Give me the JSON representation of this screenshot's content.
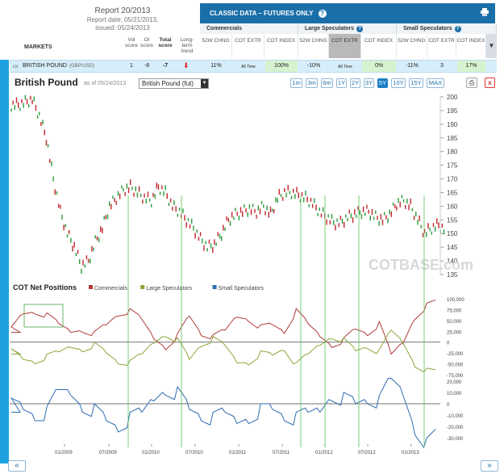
{
  "report": {
    "title": "Report 20/2013",
    "date": "Report date: 05/21/2013,",
    "issued": "issued: 05/24/2013"
  },
  "columns": {
    "markets": "MARKETS",
    "vol_score": "Vol score",
    "oi_score": "OI score",
    "total_score": "Total score",
    "long_term_trend": "Long-term trend"
  },
  "classic": {
    "title": "CLASSIC DATA – FUTURES ONLY",
    "help": "?",
    "groups": [
      {
        "name": "Commercials",
        "help": ""
      },
      {
        "name": "Large Speculators",
        "help": "?"
      },
      {
        "name": "Small Speculators",
        "help": "?"
      }
    ],
    "subcols": [
      "52W CHNG",
      "COT EXTR",
      "COT INDEX"
    ]
  },
  "row": {
    "market": "BRITISH POUND",
    "market_sub": "(GBP/USD)",
    "vol_score": "1",
    "oi_score": "-8",
    "total_score": "-7",
    "comm": {
      "chng": "11%",
      "extr": "All Time",
      "index": "100%"
    },
    "large": {
      "chng": "-10%",
      "extr": "All Time",
      "index": "0%"
    },
    "small": {
      "chng": "-11%",
      "extr": "3",
      "index": "17%"
    }
  },
  "chart": {
    "title": "British Pound",
    "asof": "as of 05/24/2013",
    "contract": "British Pound (fut)",
    "ranges": [
      "1m",
      "3m",
      "6m",
      "1Y",
      "2Y",
      "3Y",
      "5Y",
      "10Y",
      "15Y",
      "MAX"
    ],
    "active_range": "5Y",
    "watermark": "COTBASE.com",
    "cot_title": "COT Net Positions",
    "legend": [
      {
        "name": "Commercials",
        "color": "#b23b3b"
      },
      {
        "name": "Large Speculators",
        "color": "#8aa83a"
      },
      {
        "name": "Small Speculators",
        "color": "#2f6db3"
      }
    ]
  },
  "chart_data": [
    {
      "type": "line",
      "title": "British Pound",
      "y_ticks": [
        "200",
        "195",
        "190",
        "185",
        "180",
        "175",
        "170",
        "165",
        "160",
        "155",
        "150",
        "145",
        "140",
        "135"
      ],
      "ylim": [
        135,
        200
      ],
      "x_ticks": [
        "01/2009",
        "07/2009",
        "01/2010",
        "07/2010",
        "01/2011",
        "07/2011",
        "01/2012",
        "07/2012",
        "01/2013"
      ],
      "series": [
        {
          "name": "",
          "values": [
            197,
            198,
            199,
            193,
            185,
            170,
            158,
            150,
            145,
            138,
            140,
            147,
            152,
            160,
            163,
            166,
            167,
            165,
            163,
            162,
            167,
            165,
            160,
            158,
            155,
            152,
            148,
            145,
            146,
            150,
            155,
            157,
            158,
            159,
            158,
            160,
            157,
            163,
            165,
            165,
            164,
            163,
            161,
            158,
            156,
            154,
            154,
            156,
            157,
            158,
            158,
            156,
            155,
            157,
            161,
            162,
            160,
            155,
            150,
            152,
            153,
            151
          ]
        }
      ]
    },
    {
      "type": "line",
      "title": "COT Net Positions",
      "y_ticks_upper": [
        "100,000",
        "75,000",
        "50,000",
        "25,000",
        "0",
        "-25,000",
        "-50,000",
        "-75,000"
      ],
      "y_ticks_lower": [
        "20,000",
        "10,000",
        "0",
        "-10,000",
        "-20,000",
        "-30,000"
      ],
      "series": [
        {
          "name": "Commercials",
          "values": [
            30000,
            65000,
            70000,
            60000,
            40000,
            25000,
            30000,
            20000,
            40000,
            65000,
            70000,
            50000,
            10000,
            -10000,
            15000,
            60000,
            20000,
            10000,
            25000,
            60000,
            55000,
            35000,
            40000,
            25000,
            70000,
            40000,
            15000,
            -5000,
            5000,
            30000,
            20000,
            40000,
            -30000,
            0,
            60000,
            85000,
            95000
          ]
        },
        {
          "name": "Large Speculators",
          "values": [
            -20000,
            -40000,
            -45000,
            -35000,
            -25000,
            -10000,
            -15000,
            -5000,
            -25000,
            -45000,
            -50000,
            -30000,
            0,
            20000,
            5000,
            -40000,
            -5000,
            5000,
            -10000,
            -45000,
            -45000,
            -25000,
            -30000,
            -15000,
            -55000,
            -30000,
            -5000,
            15000,
            5000,
            -20000,
            -10000,
            -25000,
            25000,
            0,
            -50000,
            -65000,
            -70000
          ]
        },
        {
          "name": "Small Speculators",
          "values": [
            0,
            -5000,
            -10000,
            -10000,
            10000,
            10000,
            0,
            -5000,
            -15000,
            -20000,
            -15000,
            -10000,
            5000,
            15000,
            10000,
            -5000,
            -10000,
            -15000,
            -10000,
            -15000,
            -10000,
            -5000,
            -5000,
            -10000,
            -15000,
            -10000,
            -5000,
            10000,
            5000,
            0,
            5000,
            0,
            20000,
            10000,
            -20000,
            -35000,
            -25000
          ]
        }
      ]
    }
  ]
}
